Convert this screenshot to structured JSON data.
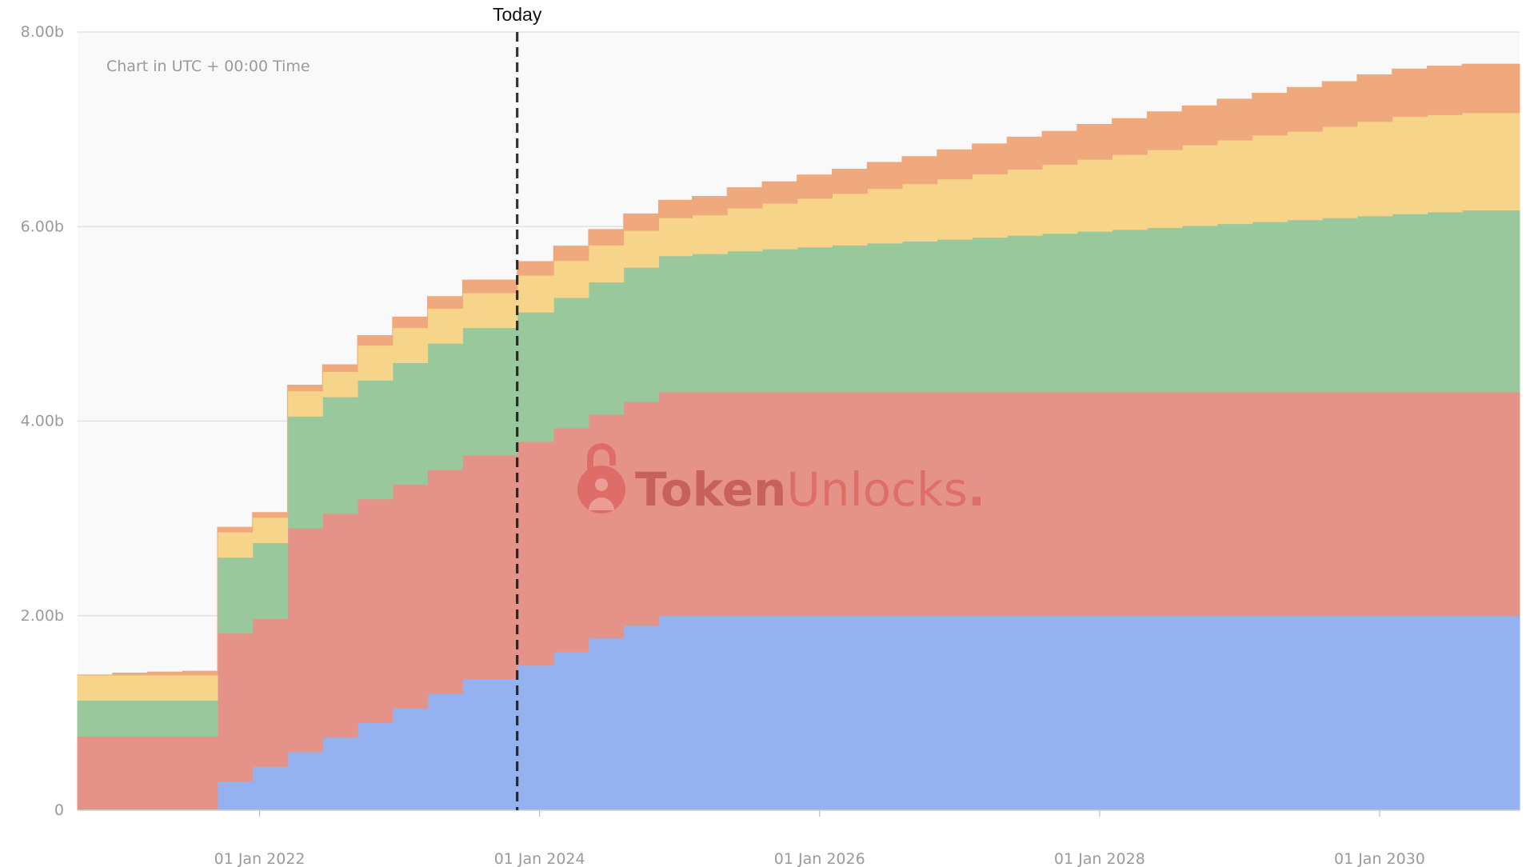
{
  "chart_data": {
    "type": "area",
    "step": true,
    "stacked": true,
    "note": "Chart in UTC + 00:00 Time",
    "today_label": "Today",
    "today_x": 2023.84,
    "x_domain": [
      2020.7,
      2031.0
    ],
    "ylim": [
      0,
      8.0
    ],
    "y_ticks": [
      {
        "value": 0,
        "label": "0"
      },
      {
        "value": 2.0,
        "label": "2.00b"
      },
      {
        "value": 4.0,
        "label": "4.00b"
      },
      {
        "value": 6.0,
        "label": "6.00b"
      },
      {
        "value": 8.0,
        "label": "8.00b"
      }
    ],
    "x_ticks": [
      {
        "value": 2022.0,
        "label": "01 Jan 2022"
      },
      {
        "value": 2024.0,
        "label": "01 Jan 2024"
      },
      {
        "value": 2026.0,
        "label": "01 Jan 2026"
      },
      {
        "value": 2028.0,
        "label": "01 Jan 2028"
      },
      {
        "value": 2030.0,
        "label": "01 Jan 2030"
      }
    ],
    "x": [
      2020.7,
      2020.95,
      2021.2,
      2021.45,
      2021.7,
      2021.95,
      2022.2,
      2022.45,
      2022.7,
      2022.95,
      2023.2,
      2023.45,
      2023.7,
      2023.84,
      2024.1,
      2024.35,
      2024.6,
      2024.85,
      2025.09,
      2025.34,
      2025.59,
      2025.84,
      2026.09,
      2026.34,
      2026.59,
      2026.84,
      2027.09,
      2027.34,
      2027.59,
      2027.84,
      2028.09,
      2028.34,
      2028.59,
      2028.84,
      2029.09,
      2029.34,
      2029.59,
      2029.84,
      2030.09,
      2030.34,
      2030.59,
      2030.84
    ],
    "x_end": 2031.0,
    "series": [
      {
        "color": "#94b2f0",
        "values": [
          0,
          0,
          0,
          0,
          0.3,
          0.45,
          0.6,
          0.75,
          0.9,
          1.05,
          1.2,
          1.35,
          1.35,
          1.49,
          1.63,
          1.77,
          1.9,
          2.0,
          2.0,
          2.0,
          2.0,
          2.0,
          2.0,
          2.0,
          2.0,
          2.0,
          2.0,
          2.0,
          2.0,
          2.0,
          2.0,
          2.0,
          2.0,
          2.0,
          2.0,
          2.0,
          2.0,
          2.0,
          2.0,
          2.0,
          2.0,
          2.0
        ]
      },
      {
        "color": "#e59388",
        "values": [
          0.76,
          0.76,
          0.76,
          0.76,
          1.52,
          1.52,
          2.3,
          2.3,
          2.3,
          2.3,
          2.3,
          2.3,
          2.3,
          2.3,
          2.3,
          2.3,
          2.3,
          2.3,
          2.3,
          2.3,
          2.3,
          2.3,
          2.3,
          2.3,
          2.3,
          2.3,
          2.3,
          2.3,
          2.3,
          2.3,
          2.3,
          2.3,
          2.3,
          2.3,
          2.3,
          2.3,
          2.3,
          2.3,
          2.3,
          2.3,
          2.3,
          2.3
        ]
      },
      {
        "color": "#98c89b",
        "values": [
          0.37,
          0.37,
          0.37,
          0.37,
          0.78,
          0.78,
          1.15,
          1.2,
          1.22,
          1.25,
          1.3,
          1.31,
          1.31,
          1.33,
          1.34,
          1.36,
          1.38,
          1.4,
          1.42,
          1.45,
          1.47,
          1.49,
          1.51,
          1.53,
          1.55,
          1.57,
          1.59,
          1.61,
          1.63,
          1.65,
          1.67,
          1.69,
          1.71,
          1.73,
          1.75,
          1.77,
          1.79,
          1.81,
          1.83,
          1.85,
          1.87,
          1.87
        ]
      },
      {
        "color": "#f6d48a",
        "values": [
          0.26,
          0.26,
          0.26,
          0.26,
          0.26,
          0.26,
          0.26,
          0.26,
          0.36,
          0.36,
          0.36,
          0.36,
          0.36,
          0.38,
          0.38,
          0.38,
          0.38,
          0.39,
          0.4,
          0.44,
          0.47,
          0.5,
          0.53,
          0.56,
          0.59,
          0.62,
          0.65,
          0.68,
          0.71,
          0.74,
          0.77,
          0.8,
          0.83,
          0.86,
          0.89,
          0.91,
          0.94,
          0.97,
          1.0,
          1.0,
          1.0,
          1.0
        ]
      },
      {
        "color": "#f0a97d",
        "values": [
          0,
          0.02,
          0.03,
          0.04,
          0.05,
          0.05,
          0.06,
          0.07,
          0.1,
          0.11,
          0.12,
          0.13,
          0.13,
          0.14,
          0.15,
          0.16,
          0.17,
          0.18,
          0.19,
          0.21,
          0.22,
          0.24,
          0.25,
          0.27,
          0.28,
          0.3,
          0.31,
          0.33,
          0.34,
          0.36,
          0.37,
          0.39,
          0.4,
          0.42,
          0.43,
          0.45,
          0.46,
          0.48,
          0.49,
          0.5,
          0.5,
          0.5
        ]
      }
    ]
  },
  "watermark": {
    "brand_bold": "Token",
    "brand_light": "Unlocks",
    "brand_dot": "."
  }
}
